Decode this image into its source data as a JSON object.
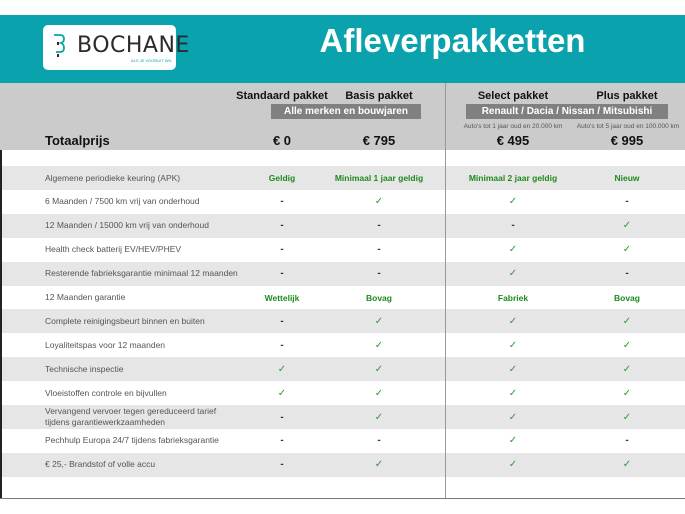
{
  "header": {
    "logo_text": "BOCHANE",
    "logo_tagline": "ALS JE VOORUIT WIL",
    "title": "Afleverpakketten",
    "brand_color": "#0aa3ad"
  },
  "packages": [
    {
      "name": "Standaard pakket",
      "price": "€ 0",
      "note": ""
    },
    {
      "name": "Basis pakket",
      "price": "€ 795",
      "note": ""
    },
    {
      "name": "Select pakket",
      "price": "€ 495",
      "note": "Auto's tot 1 jaar oud en 20.000 km"
    },
    {
      "name": "Plus pakket",
      "price": "€ 995",
      "note": "Auto's tot 5 jaar oud en 100.000 km"
    }
  ],
  "groups": {
    "left": "Alle merken en bouwjaren",
    "right": "Renault / Dacia / Nissan / Mitsubishi"
  },
  "total_label": "Totaalprijs",
  "rows": [
    {
      "label": "Algemene periodieke keuring (APK)",
      "values": [
        "Geldig",
        "Minimaal 1 jaar geldig",
        "Minimaal 2 jaar geldig",
        "Nieuw"
      ]
    },
    {
      "label": "6 Maanden / 7500 km vrij van onderhoud",
      "values": [
        "-",
        "✓",
        "✓",
        "-"
      ]
    },
    {
      "label": "12 Maanden / 15000 km vrij van onderhoud",
      "values": [
        "-",
        "-",
        "-",
        "✓"
      ]
    },
    {
      "label": "Health check batterij EV/HEV/PHEV",
      "values": [
        "-",
        "-",
        "✓",
        "✓"
      ]
    },
    {
      "label": "Resterende fabrieksgarantie minimaal 12 maanden",
      "values": [
        "-",
        "-",
        "✓",
        "-"
      ]
    },
    {
      "label": "12 Maanden  garantie",
      "values": [
        "Wettelijk",
        "Bovag",
        "Fabriek",
        "Bovag"
      ]
    },
    {
      "label": "Complete reinigingsbeurt binnen en buiten",
      "values": [
        "-",
        "✓",
        "✓",
        "✓"
      ]
    },
    {
      "label": "Loyaliteitspas voor 12 maanden",
      "values": [
        "-",
        "✓",
        "✓",
        "✓"
      ]
    },
    {
      "label": "Technische inspectie",
      "values": [
        "✓",
        "✓",
        "✓",
        "✓"
      ]
    },
    {
      "label": "Vloeistoffen controle en bijvullen",
      "values": [
        "✓",
        "✓",
        "✓",
        "✓"
      ]
    },
    {
      "label": "Vervangend vervoer tegen gereduceerd tarief tijdens garantiewerkzaamheden",
      "values": [
        "-",
        "✓",
        "✓",
        "✓"
      ]
    },
    {
      "label": "Pechhulp Europa 24/7 tijdens fabrieksgarantie",
      "values": [
        "-",
        "-",
        "✓",
        "-"
      ]
    },
    {
      "label": "€ 25,- Brandstof of  volle accu",
      "values": [
        "-",
        "✓",
        "✓",
        "✓"
      ]
    }
  ]
}
